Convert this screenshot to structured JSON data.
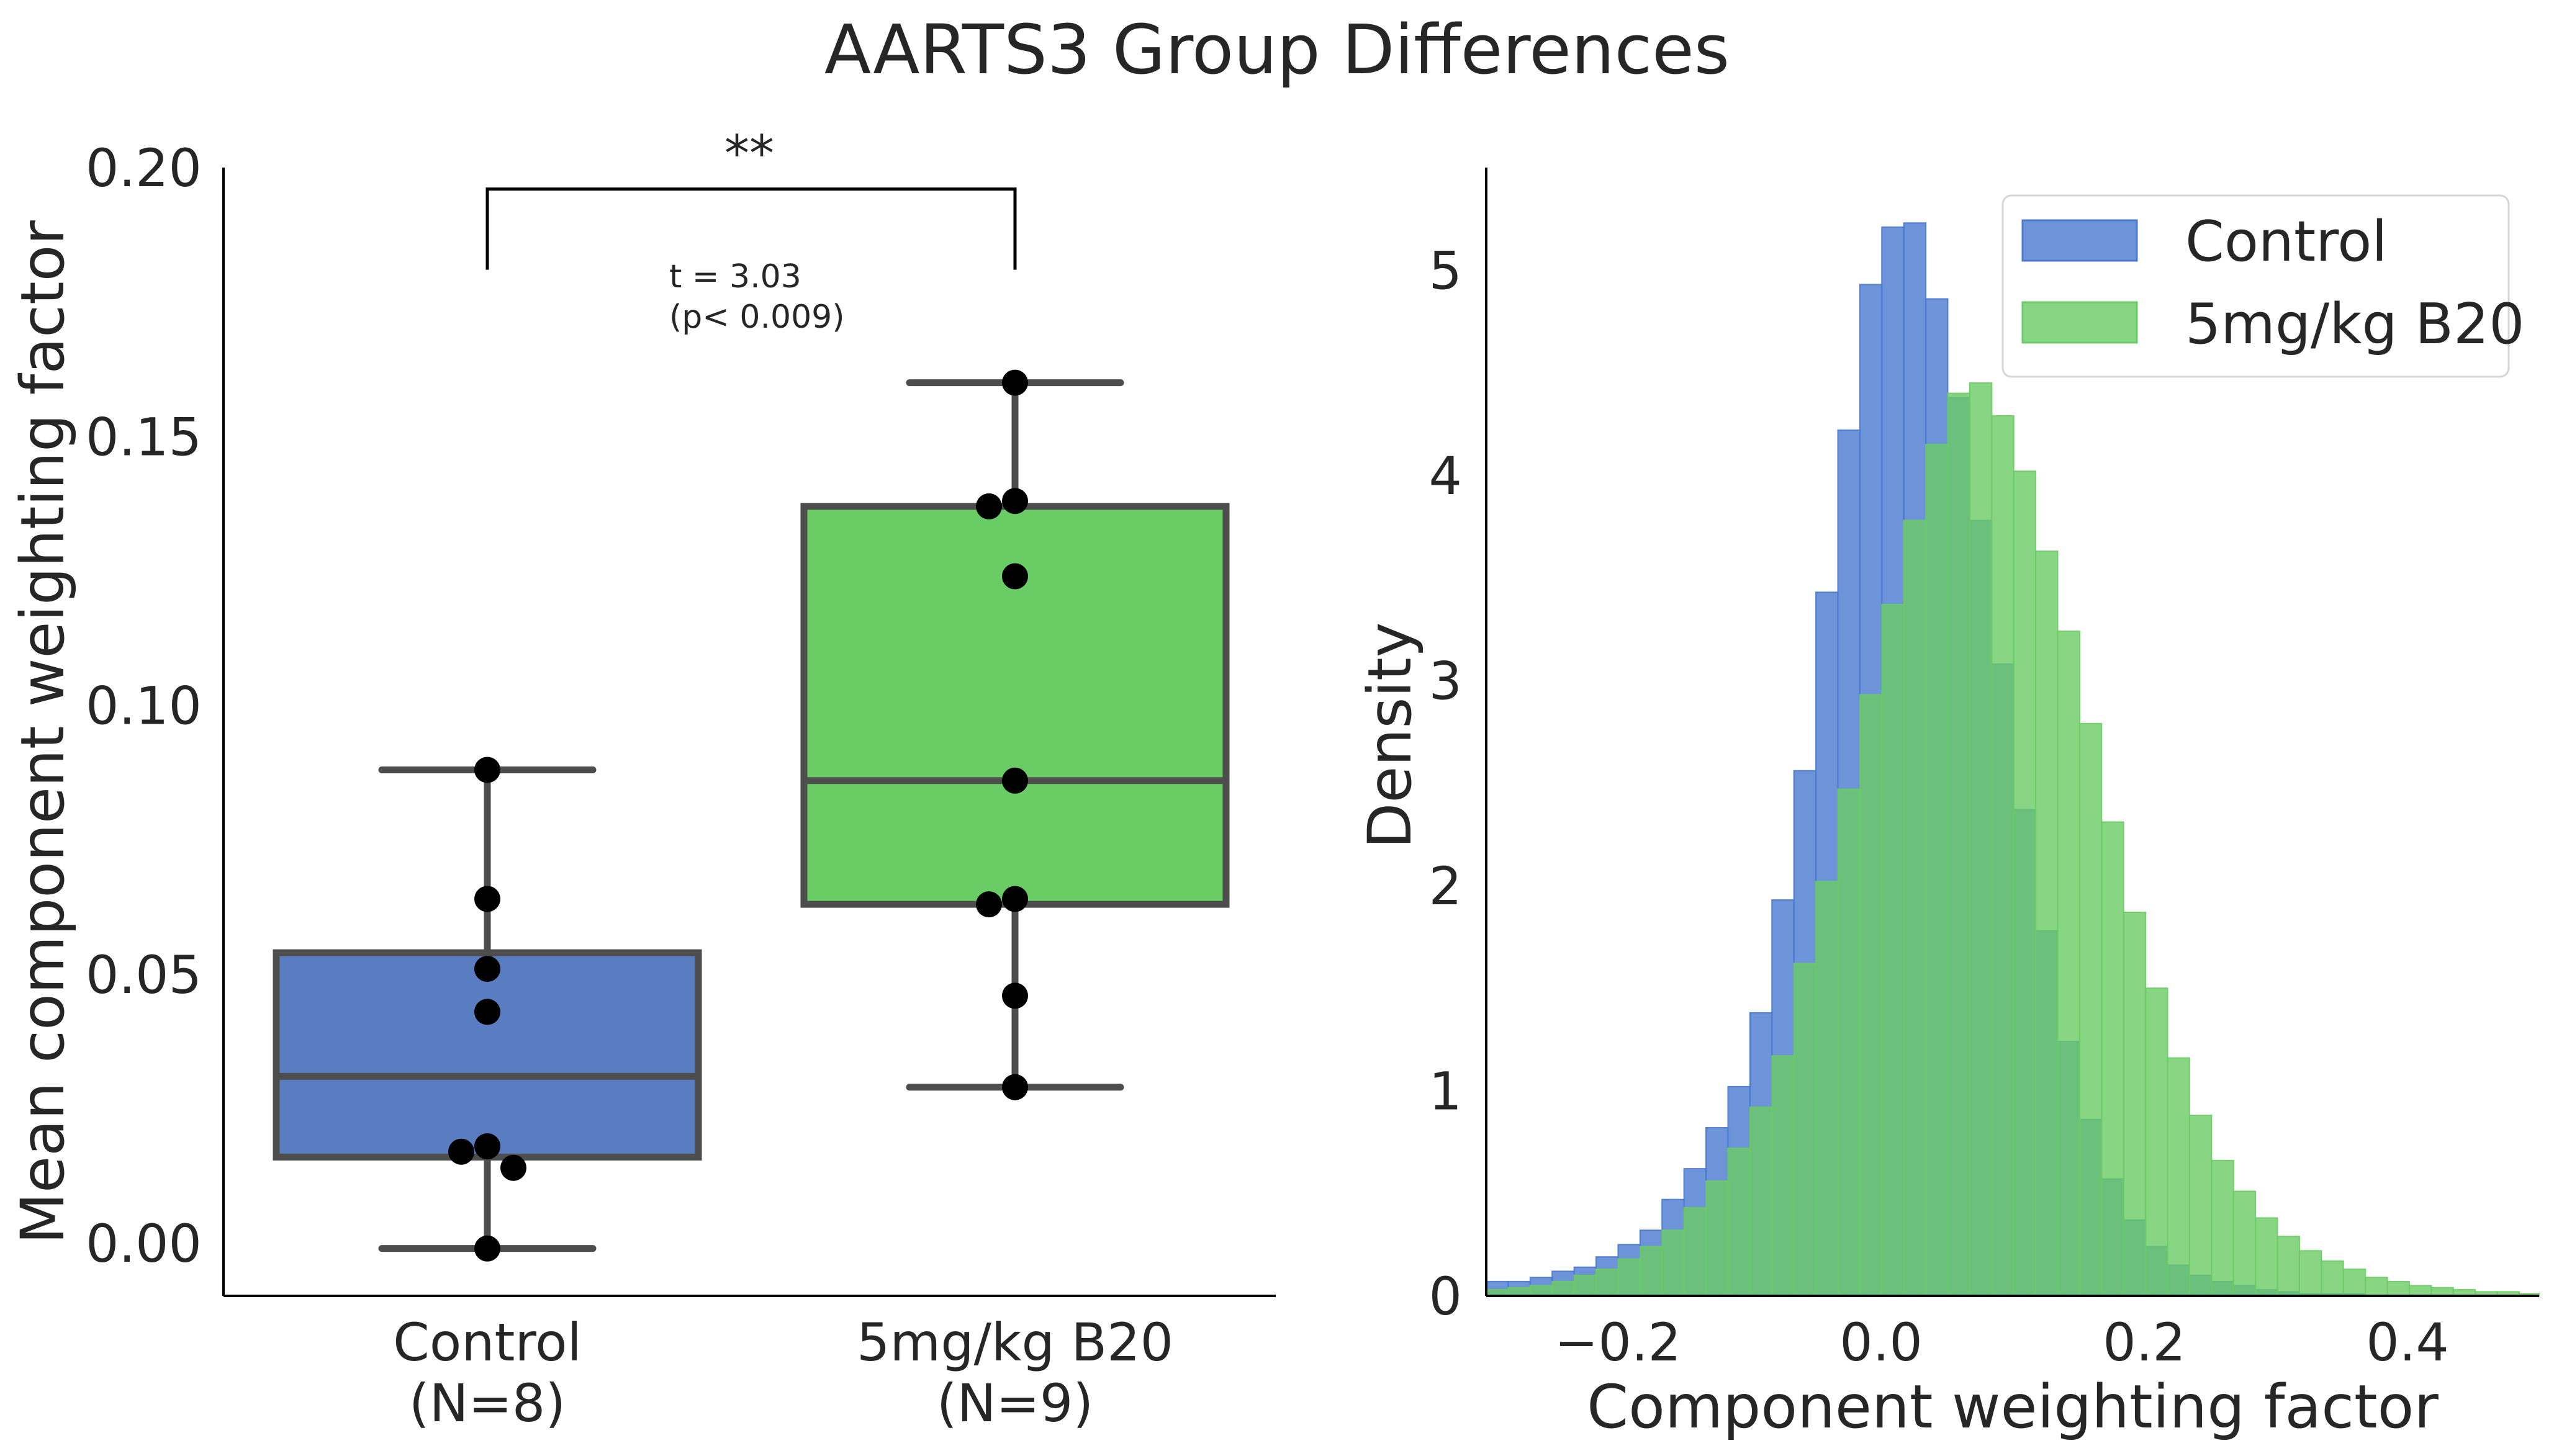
{
  "figure": {
    "title": "AARTS3 Group Differences"
  },
  "chart_data": [
    {
      "type": "box",
      "ylabel": "Mean component weighting factor",
      "xlabel": "",
      "ylim": [
        -0.01,
        0.2
      ],
      "yticks": [
        "0.00",
        "0.05",
        "0.10",
        "0.15",
        "0.20"
      ],
      "yticks_values": [
        0.0,
        0.05,
        0.1,
        0.15,
        0.2
      ],
      "grid": false,
      "groups": [
        {
          "label_line1": "Control",
          "label_line2": "(N=8)",
          "color": "#5a7dc1",
          "q1": 0.016,
          "median": 0.031,
          "q3": 0.054,
          "whisker_low": -0.001,
          "whisker_high": 0.088,
          "points": [
            0.088,
            0.064,
            0.051,
            0.043,
            0.018,
            0.017,
            0.014,
            -0.001
          ]
        },
        {
          "label_line1": "5mg/kg B20",
          "label_line2": "(N=9)",
          "color": "#6acc64",
          "q1": 0.063,
          "median": 0.086,
          "q3": 0.137,
          "whisker_low": 0.029,
          "whisker_high": 0.16,
          "points": [
            0.16,
            0.138,
            0.137,
            0.124,
            0.086,
            0.064,
            0.063,
            0.046,
            0.029
          ]
        }
      ],
      "annotation": {
        "significance": "**",
        "stat_line1": "t = 3.03",
        "stat_line2": "(p< 0.009)",
        "bracket_y": 0.196,
        "bracket_drop": 0.181
      }
    },
    {
      "type": "histogram",
      "xlabel": "Component weighting factor",
      "ylabel": "Density",
      "xlim": [
        -0.3,
        0.5
      ],
      "ylim": [
        0,
        5.5
      ],
      "xticks": [
        "−0.2",
        "0.0",
        "0.2",
        "0.4"
      ],
      "xticks_values": [
        -0.2,
        0.0,
        0.2,
        0.4
      ],
      "yticks": [
        "0",
        "1",
        "2",
        "3",
        "4",
        "5"
      ],
      "yticks_values": [
        0,
        1,
        2,
        3,
        4,
        5
      ],
      "grid": false,
      "legend_position": "top-right",
      "bin_start": -0.3,
      "bin_width": 0.0167,
      "series": [
        {
          "name": "Control",
          "color": "#4878d0",
          "opacity": 0.8,
          "values": [
            0.07,
            0.07,
            0.09,
            0.12,
            0.14,
            0.19,
            0.25,
            0.32,
            0.47,
            0.62,
            0.82,
            1.02,
            1.38,
            1.93,
            2.56,
            3.43,
            4.22,
            4.93,
            5.21,
            5.23,
            4.86,
            4.38,
            3.78,
            3.08,
            2.37,
            1.78,
            1.24,
            0.86,
            0.57,
            0.37,
            0.24,
            0.15,
            0.1,
            0.07,
            0.05,
            0.03,
            0.02,
            0.01,
            0.01,
            0.01,
            0.0,
            0.0,
            0.0,
            0.0,
            0.0,
            0.0,
            0.0,
            0.0
          ]
        },
        {
          "name": "5mg/kg B20",
          "color": "#6acc64",
          "opacity": 0.8,
          "values": [
            0.03,
            0.04,
            0.05,
            0.07,
            0.1,
            0.13,
            0.18,
            0.24,
            0.32,
            0.43,
            0.56,
            0.72,
            0.92,
            1.17,
            1.62,
            2.02,
            2.47,
            2.93,
            3.37,
            3.78,
            4.15,
            4.4,
            4.45,
            4.29,
            4.02,
            3.63,
            3.24,
            2.79,
            2.31,
            1.87,
            1.5,
            1.16,
            0.88,
            0.66,
            0.51,
            0.38,
            0.29,
            0.22,
            0.17,
            0.13,
            0.09,
            0.07,
            0.05,
            0.04,
            0.03,
            0.02,
            0.02,
            0.01
          ]
        }
      ]
    }
  ]
}
